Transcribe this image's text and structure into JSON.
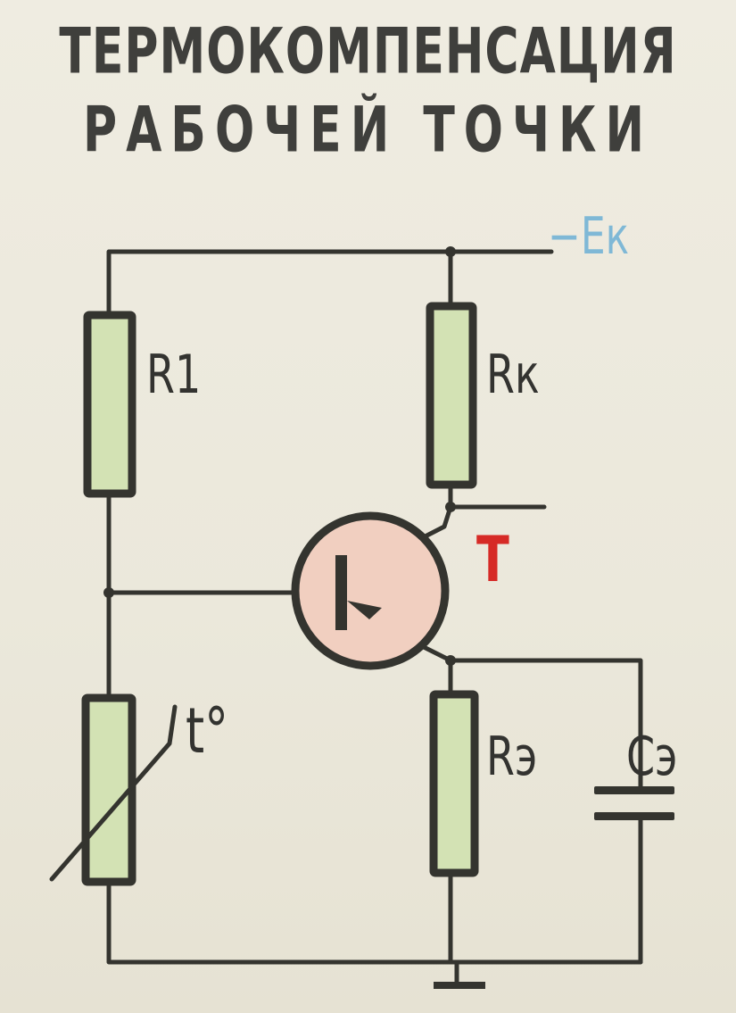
{
  "title": {
    "line1": "ТЕРМОКОМПЕНСАЦИЯ",
    "line2": "РАБОЧЕЙ ТОЧКИ"
  },
  "labels": {
    "supply": "−Eк",
    "r1": "R1",
    "rk": "Rк",
    "re": "Rэ",
    "ce": "Cэ",
    "thermistor": "t°",
    "transistor": "T"
  },
  "colors": {
    "background": "#ece9dc",
    "wire": "#34342f",
    "resistor_fill": "#d3e2b4",
    "transistor_fill": "#f1cfc0",
    "supply_label": "#7fb8d6",
    "transistor_label": "#d62a26",
    "text": "#3f3f3c"
  }
}
